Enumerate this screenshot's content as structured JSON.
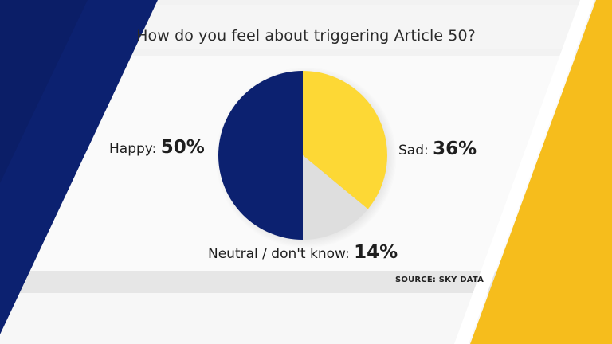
{
  "title": "How do you feel about triggering Article 50?",
  "source": "SOURCE: SKY DATA",
  "colors": {
    "navy": "#0c2170",
    "yellow": "#fdd835",
    "grey": "#dedede",
    "panel": "#fafafa",
    "stripe": "#e6e6e6"
  },
  "chart_data": {
    "type": "pie",
    "title": "How do you feel about triggering Article 50?",
    "slices": [
      {
        "label": "Sad:",
        "value": 36,
        "value_text": "36%",
        "color": "#fdd835"
      },
      {
        "label": "Neutral / don't know:",
        "value": 14,
        "value_text": "14%",
        "color": "#dedede"
      },
      {
        "label": "Happy:",
        "value": 50,
        "value_text": "50%",
        "color": "#0c2170"
      }
    ],
    "start_angle": "12 o'clock",
    "direction": "clockwise"
  }
}
